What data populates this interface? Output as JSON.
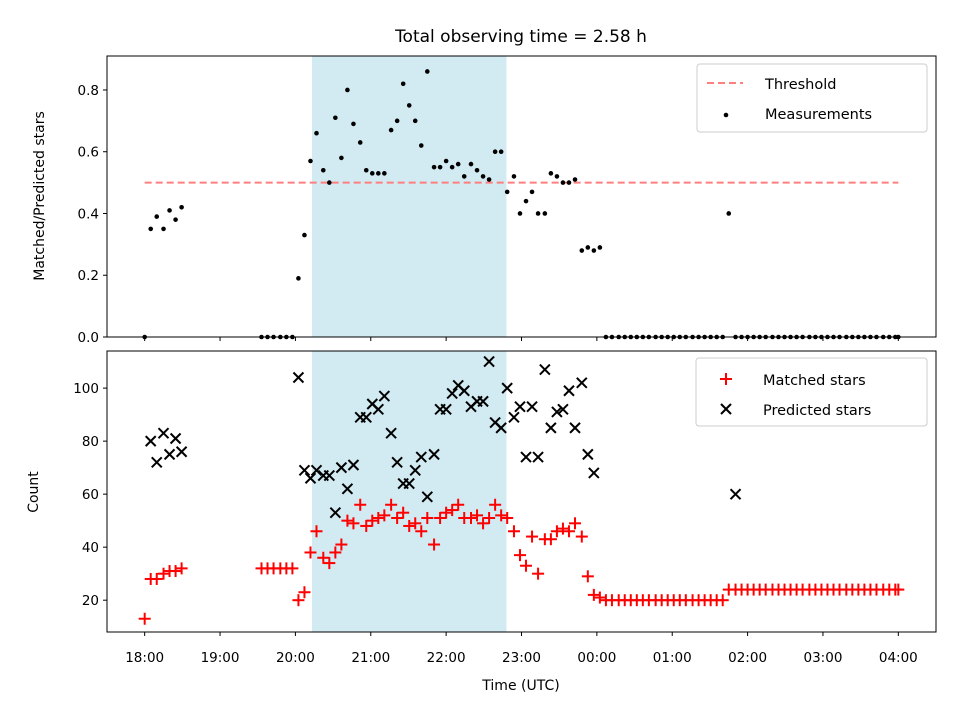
{
  "chart_data": [
    {
      "type": "scatter",
      "title": "Total observing time = 2.58 h",
      "xlabel": "",
      "ylabel": "Matched/Predicted stars",
      "ylim": [
        0.0,
        0.91
      ],
      "xlim": [
        -0.5,
        10.5
      ],
      "yticks": [
        "0.0",
        "0.2",
        "0.4",
        "0.6",
        "0.8"
      ],
      "shaded_interval": [
        2.22,
        4.8
      ],
      "shade_color": "#add8e6",
      "threshold": {
        "name": "Threshold",
        "value": 0.5,
        "x_range": [
          0.0,
          10.0
        ],
        "color": "#ff7f7f"
      },
      "series": [
        {
          "name": "Measurements",
          "color": "#000000",
          "x": [
            0.0,
            0.08,
            0.16,
            0.25,
            0.33,
            0.41,
            0.49,
            1.55,
            1.63,
            1.71,
            1.8,
            1.88,
            1.96,
            2.04,
            2.12,
            2.2,
            2.28,
            2.37,
            2.45,
            2.53,
            2.61,
            2.69,
            2.77,
            2.86,
            2.94,
            3.02,
            3.1,
            3.18,
            3.27,
            3.35,
            3.43,
            3.51,
            3.59,
            3.67,
            3.75,
            3.84,
            3.92,
            4.0,
            4.08,
            4.16,
            4.24,
            4.33,
            4.41,
            4.49,
            4.57,
            4.65,
            4.73,
            4.81,
            4.9,
            4.98,
            5.06,
            5.14,
            5.22,
            5.31,
            5.39,
            5.47,
            5.55,
            5.63,
            5.71,
            5.8,
            5.88,
            5.96,
            6.04,
            6.12,
            6.2,
            6.29,
            6.37,
            6.45,
            6.53,
            6.61,
            6.69,
            6.78,
            6.86,
            6.94,
            7.02,
            7.1,
            7.18,
            7.27,
            7.35,
            7.43,
            7.51,
            7.59,
            7.67,
            7.75,
            7.84,
            7.92,
            8.0,
            8.08,
            8.16,
            8.24,
            8.33,
            8.41,
            8.49,
            8.57,
            8.65,
            8.73,
            8.82,
            8.9,
            8.98,
            9.06,
            9.14,
            9.22,
            9.31,
            9.39,
            9.47,
            9.55,
            9.63,
            9.71,
            9.8,
            9.88,
            9.96,
            10.0
          ],
          "y": [
            0.0,
            0.35,
            0.39,
            0.35,
            0.41,
            0.38,
            0.42,
            0.0,
            0.0,
            0.0,
            0.0,
            0.0,
            0.0,
            0.19,
            0.33,
            0.57,
            0.66,
            0.54,
            0.5,
            0.71,
            0.58,
            0.8,
            0.69,
            0.63,
            0.54,
            0.53,
            0.53,
            0.53,
            0.67,
            0.7,
            0.82,
            0.75,
            0.7,
            0.62,
            0.86,
            0.55,
            0.55,
            0.57,
            0.55,
            0.56,
            0.52,
            0.56,
            0.54,
            0.52,
            0.51,
            0.6,
            0.6,
            0.47,
            0.52,
            0.4,
            0.44,
            0.47,
            0.4,
            0.4,
            0.53,
            0.52,
            0.5,
            0.5,
            0.51,
            0.28,
            0.29,
            0.28,
            0.29,
            0.0,
            0.0,
            0.0,
            0.0,
            0.0,
            0.0,
            0.0,
            0.0,
            0.0,
            0.0,
            0.0,
            0.0,
            0.0,
            0.0,
            0.0,
            0.0,
            0.0,
            0.0,
            0.0,
            0.0,
            0.4,
            0.0,
            0.0,
            0.0,
            0.0,
            0.0,
            0.0,
            0.0,
            0.0,
            0.0,
            0.0,
            0.0,
            0.0,
            0.0,
            0.0,
            0.0,
            0.0,
            0.0,
            0.0,
            0.0,
            0.0,
            0.0,
            0.0,
            0.0,
            0.0,
            0.0,
            0.0,
            0.0,
            0.0
          ]
        }
      ],
      "legend": [
        "Threshold",
        "Measurements"
      ],
      "legend_placement": "top-right",
      "grid": false
    },
    {
      "type": "scatter",
      "title": "",
      "xlabel": "Time (UTC)",
      "ylabel": "Count",
      "ylim": [
        8,
        114
      ],
      "xlim": [
        -0.5,
        10.5
      ],
      "yticks": [
        "20",
        "40",
        "60",
        "80",
        "100"
      ],
      "xticks": [
        "18:00",
        "19:00",
        "20:00",
        "21:00",
        "22:00",
        "23:00",
        "00:00",
        "01:00",
        "02:00",
        "03:00",
        "04:00"
      ],
      "shaded_interval": [
        2.22,
        4.8
      ],
      "shade_color": "#add8e6",
      "series": [
        {
          "name": "Matched stars",
          "marker": "+",
          "color": "#ff0000",
          "x": [
            0.0,
            0.08,
            0.16,
            0.25,
            0.33,
            0.41,
            0.49,
            1.55,
            1.63,
            1.71,
            1.8,
            1.88,
            1.96,
            2.04,
            2.12,
            2.2,
            2.28,
            2.37,
            2.45,
            2.53,
            2.61,
            2.69,
            2.77,
            2.86,
            2.94,
            3.02,
            3.1,
            3.18,
            3.27,
            3.35,
            3.43,
            3.51,
            3.59,
            3.67,
            3.75,
            3.84,
            3.92,
            4.0,
            4.08,
            4.16,
            4.24,
            4.33,
            4.41,
            4.49,
            4.57,
            4.65,
            4.73,
            4.81,
            4.9,
            4.98,
            5.06,
            5.14,
            5.22,
            5.31,
            5.39,
            5.47,
            5.55,
            5.63,
            5.71,
            5.8,
            5.88,
            5.96,
            6.04,
            6.12,
            6.2,
            6.29,
            6.37,
            6.45,
            6.53,
            6.61,
            6.69,
            6.78,
            6.86,
            6.94,
            7.02,
            7.1,
            7.18,
            7.27,
            7.35,
            7.43,
            7.51,
            7.59,
            7.67,
            7.75,
            7.84,
            7.92,
            8.0,
            8.08,
            8.16,
            8.24,
            8.33,
            8.41,
            8.49,
            8.57,
            8.65,
            8.73,
            8.82,
            8.9,
            8.98,
            9.06,
            9.14,
            9.22,
            9.31,
            9.39,
            9.47,
            9.55,
            9.63,
            9.71,
            9.8,
            9.88,
            9.96,
            10.0
          ],
          "y": [
            13,
            28,
            28,
            30,
            31,
            31,
            32,
            32,
            32,
            32,
            32,
            32,
            32,
            20,
            23,
            38,
            46,
            36,
            34,
            38,
            41,
            50,
            49,
            56,
            48,
            50,
            51,
            52,
            56,
            51,
            53,
            48,
            49,
            46,
            51,
            41,
            51,
            53,
            54,
            56,
            51,
            51,
            52,
            49,
            51,
            56,
            52,
            51,
            46,
            37,
            33,
            44,
            30,
            43,
            43,
            46,
            47,
            46,
            49,
            44,
            29,
            22,
            21,
            20,
            20,
            20,
            20,
            20,
            20,
            20,
            20,
            20,
            20,
            20,
            20,
            20,
            20,
            20,
            20,
            20,
            20,
            20,
            20,
            24,
            24,
            24,
            24,
            24,
            24,
            24,
            24,
            24,
            24,
            24,
            24,
            24,
            24,
            24,
            24,
            24,
            24,
            24,
            24,
            24,
            24,
            24,
            24,
            24,
            24,
            24,
            24,
            24
          ]
        },
        {
          "name": "Predicted stars",
          "marker": "x",
          "color": "#000000",
          "x": [
            0.08,
            0.16,
            0.25,
            0.33,
            0.41,
            0.49,
            2.04,
            2.12,
            2.2,
            2.28,
            2.37,
            2.45,
            2.53,
            2.61,
            2.69,
            2.77,
            2.86,
            2.94,
            3.02,
            3.1,
            3.18,
            3.27,
            3.35,
            3.43,
            3.51,
            3.59,
            3.67,
            3.75,
            3.84,
            3.92,
            4.0,
            4.08,
            4.16,
            4.24,
            4.33,
            4.41,
            4.49,
            4.57,
            4.65,
            4.73,
            4.81,
            4.9,
            4.98,
            5.06,
            5.14,
            5.22,
            5.31,
            5.39,
            5.47,
            5.55,
            5.63,
            5.71,
            5.8,
            5.88,
            5.96,
            7.84
          ],
          "y": [
            80,
            72,
            83,
            75,
            81,
            76,
            104,
            69,
            66,
            69,
            67,
            67,
            53,
            70,
            62,
            71,
            89,
            89,
            94,
            92,
            97,
            83,
            72,
            64,
            64,
            69,
            74,
            59,
            75,
            92,
            92,
            98,
            101,
            99,
            93,
            95,
            95,
            110,
            87,
            85,
            100,
            89,
            93,
            74,
            93,
            74,
            107,
            85,
            91,
            92,
            99,
            85,
            102,
            75,
            68,
            60
          ]
        }
      ],
      "legend": [
        "Matched stars",
        "Predicted stars"
      ],
      "legend_placement": "top-right",
      "grid": false
    }
  ]
}
